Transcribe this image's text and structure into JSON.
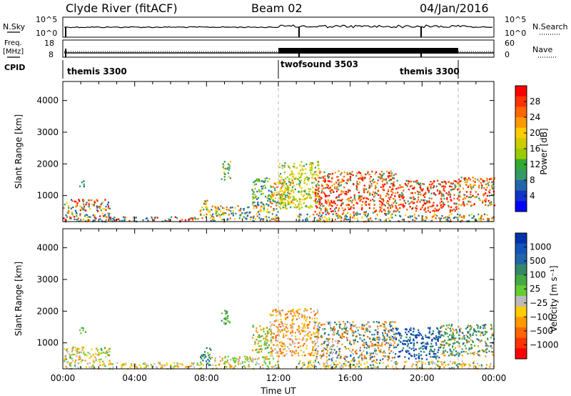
{
  "header": {
    "title": "Clyde River (fitACF)",
    "beam": "Beam 02",
    "date": "04/Jan/2016"
  },
  "strips": {
    "nsky": {
      "label": "N.Sky",
      "ticks": [
        "10^5",
        "10^0"
      ],
      "right_ticks": [
        "10^5",
        "10^0"
      ],
      "right_label": "N.Search"
    },
    "freq": {
      "label_top": "Freq.",
      "label_unit": "[MHz]",
      "ticks": [
        "18",
        "8"
      ],
      "right_ticks": [
        "60",
        "0"
      ],
      "right_label": "Nave"
    },
    "cpid": {
      "label": "CPID",
      "segments": [
        {
          "name": "themis 3300",
          "start": 0,
          "end": 12
        },
        {
          "name": "twofsound 3503",
          "start": 12,
          "end": 22
        },
        {
          "name": "themis 3300",
          "start": 22,
          "end": 24
        }
      ],
      "right_segment_label": "themis 3300"
    }
  },
  "chart_data": [
    {
      "type": "heatmap",
      "name": "power",
      "ylabel": "Slant Range [km]",
      "xlabel": "",
      "x_range_hours": [
        0,
        24
      ],
      "ylim": [
        180,
        4600
      ],
      "yticks": [
        1000,
        2000,
        3000,
        4000
      ],
      "dashed_lines_hours": [
        12,
        22
      ],
      "colorbar": {
        "label": "Power [dB]",
        "ticks": [
          "28",
          "24",
          "20",
          "16",
          "12",
          "8",
          "4"
        ],
        "colors": [
          "#ff0000",
          "#ff3300",
          "#ff6600",
          "#ff9900",
          "#ffcc00",
          "#cccc00",
          "#99cc00",
          "#33aa33",
          "#339966",
          "#2266aa",
          "#1133cc",
          "#0000ff"
        ]
      },
      "regions": [
        {
          "t0": 0.0,
          "t1": 2.6,
          "r0": 200,
          "r1": 900,
          "colors": [
            "#ff0000",
            "#ff6600",
            "#339966",
            "#2266aa",
            "#ffcc00"
          ]
        },
        {
          "t0": 0.9,
          "t1": 1.3,
          "r0": 1300,
          "r1": 1500,
          "colors": [
            "#339966",
            "#2266aa"
          ]
        },
        {
          "t0": 2.5,
          "t1": 7.6,
          "r0": 200,
          "r1": 350,
          "colors": [
            "#ff0000",
            "#ff6600",
            "#339966",
            "#2266aa"
          ]
        },
        {
          "t0": 7.6,
          "t1": 8.2,
          "r0": 300,
          "r1": 900,
          "colors": [
            "#ff6600",
            "#ffcc00",
            "#339966"
          ]
        },
        {
          "t0": 8.2,
          "t1": 12.0,
          "r0": 200,
          "r1": 700,
          "colors": [
            "#339966",
            "#2266aa",
            "#ff6600",
            "#ffcc00"
          ]
        },
        {
          "t0": 8.8,
          "t1": 9.3,
          "r0": 1500,
          "r1": 2100,
          "colors": [
            "#339966",
            "#ffcc00"
          ]
        },
        {
          "t0": 10.5,
          "t1": 11.6,
          "r0": 700,
          "r1": 1600,
          "colors": [
            "#339966",
            "#2266aa",
            "#99cc00"
          ]
        },
        {
          "t0": 11.5,
          "t1": 12.8,
          "r0": 700,
          "r1": 1500,
          "colors": [
            "#ff6600",
            "#ffcc00",
            "#339966"
          ]
        },
        {
          "t0": 12.0,
          "t1": 14.2,
          "r0": 600,
          "r1": 2100,
          "colors": [
            "#99cc00",
            "#ffcc00",
            "#339966",
            "#cccc00"
          ]
        },
        {
          "t0": 14.0,
          "t1": 18.5,
          "r0": 450,
          "r1": 1800,
          "colors": [
            "#ff0000",
            "#ff3300",
            "#ff6600",
            "#ff9900",
            "#339966"
          ]
        },
        {
          "t0": 18.5,
          "t1": 22.0,
          "r0": 500,
          "r1": 1500,
          "colors": [
            "#ff0000",
            "#ff3300",
            "#ff6600",
            "#339966"
          ]
        },
        {
          "t0": 22.0,
          "t1": 24.0,
          "r0": 700,
          "r1": 1600,
          "colors": [
            "#ff0000",
            "#ff6600",
            "#ff9900",
            "#339966"
          ]
        },
        {
          "t0": 13.0,
          "t1": 24.0,
          "r0": 200,
          "r1": 450,
          "colors": [
            "#ff6600",
            "#339966",
            "#2266aa",
            "#ffcc00"
          ]
        }
      ]
    },
    {
      "type": "heatmap",
      "name": "velocity",
      "ylabel": "Slant Range [km]",
      "xlabel": "Time UT",
      "x_range_hours": [
        0,
        24
      ],
      "xticks": [
        "00:00",
        "04:00",
        "08:00",
        "12:00",
        "16:00",
        "20:00",
        "00:00"
      ],
      "ylim": [
        180,
        4600
      ],
      "yticks": [
        1000,
        2000,
        3000,
        4000
      ],
      "dashed_lines_hours": [
        12,
        22
      ],
      "colorbar": {
        "label": "Velocity [m s⁻¹]",
        "ticks": [
          "1000",
          "500",
          "100",
          "25",
          "−25",
          "−100",
          "−500",
          "−1000"
        ],
        "colors": [
          "#0033aa",
          "#1155bb",
          "#2266aa",
          "#338866",
          "#44aa44",
          "#66cc33",
          "#bbbbbb",
          "#ffcc00",
          "#ff9900",
          "#ff6600",
          "#ff3300",
          "#ff0000"
        ]
      },
      "regions": [
        {
          "t0": 0.0,
          "t1": 2.6,
          "r0": 200,
          "r1": 900,
          "colors": [
            "#ff9900",
            "#ffcc00",
            "#bbbbbb",
            "#66cc33",
            "#44aa44"
          ]
        },
        {
          "t0": 0.9,
          "t1": 1.3,
          "r0": 1300,
          "r1": 1500,
          "colors": [
            "#44aa44",
            "#66cc33"
          ]
        },
        {
          "t0": 2.5,
          "t1": 8.0,
          "r0": 200,
          "r1": 400,
          "colors": [
            "#bbbbbb",
            "#ffcc00",
            "#66cc33",
            "#ff9900"
          ]
        },
        {
          "t0": 7.6,
          "t1": 8.2,
          "r0": 300,
          "r1": 900,
          "colors": [
            "#338866",
            "#2266aa",
            "#66cc33"
          ]
        },
        {
          "t0": 8.2,
          "t1": 12.0,
          "r0": 200,
          "r1": 600,
          "colors": [
            "#bbbbbb",
            "#ff9900",
            "#66cc33"
          ]
        },
        {
          "t0": 8.8,
          "t1": 9.3,
          "r0": 1500,
          "r1": 2100,
          "colors": [
            "#338866",
            "#66cc33"
          ]
        },
        {
          "t0": 10.5,
          "t1": 11.6,
          "r0": 700,
          "r1": 1600,
          "colors": [
            "#66cc33",
            "#44aa44",
            "#ff9900"
          ]
        },
        {
          "t0": 11.5,
          "t1": 14.2,
          "r0": 600,
          "r1": 2100,
          "colors": [
            "#ff6600",
            "#ff9900",
            "#ffcc00",
            "#bbbbbb"
          ]
        },
        {
          "t0": 14.0,
          "t1": 18.5,
          "r0": 450,
          "r1": 1700,
          "colors": [
            "#ff6600",
            "#ff9900",
            "#338866",
            "#2266aa",
            "#bbbbbb"
          ]
        },
        {
          "t0": 18.5,
          "t1": 21.0,
          "r0": 500,
          "r1": 1500,
          "colors": [
            "#0033aa",
            "#1155bb",
            "#2266aa",
            "#338866"
          ]
        },
        {
          "t0": 21.0,
          "t1": 24.0,
          "r0": 600,
          "r1": 1600,
          "colors": [
            "#338866",
            "#2266aa",
            "#44aa44",
            "#ff9900"
          ]
        },
        {
          "t0": 13.0,
          "t1": 24.0,
          "r0": 200,
          "r1": 450,
          "colors": [
            "#ff9900",
            "#bbbbbb",
            "#ffcc00",
            "#338866"
          ]
        }
      ]
    }
  ]
}
